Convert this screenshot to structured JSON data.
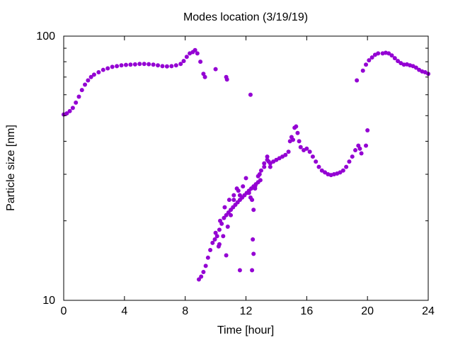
{
  "chart_data": {
    "type": "scatter",
    "title": "Modes location (3/19/19)",
    "xlabel": "Time [hour]",
    "ylabel": "Particle size [nm]",
    "xlim": [
      0,
      24
    ],
    "ylim": [
      10,
      100
    ],
    "yscale": "log",
    "grid": false,
    "legend": "none",
    "point_color": "#9400d3",
    "x_ticks": [
      {
        "value": 0,
        "label": "0"
      },
      {
        "value": 4,
        "label": "4"
      },
      {
        "value": 8,
        "label": "8"
      },
      {
        "value": 12,
        "label": "12"
      },
      {
        "value": 16,
        "label": "16"
      },
      {
        "value": 20,
        "label": "20"
      },
      {
        "value": 24,
        "label": "24"
      }
    ],
    "y_ticks": [
      {
        "value": 10,
        "label": "10"
      },
      {
        "value": 100,
        "label": "100"
      }
    ],
    "series": [
      {
        "points": [
          [
            0.0,
            50.5
          ],
          [
            0.2,
            51.0
          ],
          [
            0.4,
            52.0
          ],
          [
            0.6,
            53.5
          ],
          [
            0.8,
            56.0
          ],
          [
            1.0,
            59.0
          ],
          [
            1.2,
            62.5
          ],
          [
            1.4,
            65.5
          ],
          [
            1.6,
            68.0
          ],
          [
            1.8,
            70.0
          ],
          [
            2.0,
            71.5
          ],
          [
            2.3,
            73.0
          ],
          [
            2.6,
            74.5
          ],
          [
            2.9,
            75.5
          ],
          [
            3.2,
            76.5
          ],
          [
            3.5,
            77.0
          ],
          [
            3.8,
            77.5
          ],
          [
            4.1,
            77.8
          ],
          [
            4.4,
            78.0
          ],
          [
            4.7,
            78.2
          ],
          [
            5.0,
            78.5
          ],
          [
            5.3,
            78.5
          ],
          [
            5.6,
            78.3
          ],
          [
            5.9,
            78.0
          ],
          [
            6.2,
            77.5
          ],
          [
            6.5,
            77.0
          ],
          [
            6.8,
            76.8
          ],
          [
            7.1,
            77.0
          ],
          [
            7.4,
            77.5
          ],
          [
            7.7,
            78.5
          ],
          [
            7.9,
            80.5
          ],
          [
            8.1,
            83.5
          ],
          [
            8.3,
            86.0
          ],
          [
            8.5,
            87.0
          ],
          [
            8.65,
            88.5
          ],
          [
            8.8,
            86.0
          ],
          [
            9.0,
            80.0
          ],
          [
            9.2,
            72.0
          ],
          [
            9.3,
            70.0
          ],
          [
            10.0,
            75.0
          ],
          [
            10.7,
            70.0
          ],
          [
            10.75,
            68.5
          ],
          [
            12.3,
            60.0
          ],
          [
            21.0,
            86.0
          ],
          [
            21.2,
            86.5
          ],
          [
            21.4,
            86.0
          ],
          [
            21.6,
            84.5
          ],
          [
            21.8,
            82.5
          ],
          [
            22.0,
            80.5
          ],
          [
            22.2,
            79.0
          ],
          [
            22.4,
            78.0
          ],
          [
            22.6,
            78.2
          ],
          [
            22.8,
            77.5
          ],
          [
            23.0,
            77.0
          ],
          [
            23.2,
            76.0
          ],
          [
            23.4,
            74.5
          ],
          [
            23.6,
            73.5
          ],
          [
            23.8,
            73.0
          ],
          [
            24.0,
            72.0
          ],
          [
            19.3,
            68.0
          ],
          [
            19.7,
            74.0
          ],
          [
            19.9,
            78.0
          ],
          [
            20.1,
            81.0
          ],
          [
            20.3,
            83.0
          ],
          [
            20.5,
            85.0
          ],
          [
            20.7,
            86.0
          ],
          [
            8.9,
            12.0
          ],
          [
            9.05,
            12.3
          ],
          [
            9.2,
            12.8
          ],
          [
            9.35,
            13.5
          ],
          [
            9.5,
            14.5
          ],
          [
            9.65,
            15.5
          ],
          [
            9.8,
            16.5
          ],
          [
            9.95,
            17.0
          ],
          [
            10.1,
            17.5
          ],
          [
            10.25,
            18.5
          ],
          [
            10.4,
            19.5
          ],
          [
            10.55,
            20.5
          ],
          [
            10.7,
            21.0
          ],
          [
            10.85,
            21.5
          ],
          [
            11.0,
            22.0
          ],
          [
            11.15,
            22.5
          ],
          [
            11.3,
            23.0
          ],
          [
            11.45,
            23.5
          ],
          [
            11.6,
            24.0
          ],
          [
            11.75,
            24.5
          ],
          [
            11.9,
            25.0
          ],
          [
            12.05,
            25.5
          ],
          [
            12.2,
            26.0
          ],
          [
            12.35,
            26.5
          ],
          [
            12.5,
            27.0
          ],
          [
            12.65,
            27.5
          ],
          [
            12.8,
            28.0
          ],
          [
            12.95,
            28.5
          ],
          [
            10.2,
            16.0
          ],
          [
            10.5,
            17.5
          ],
          [
            10.8,
            19.0
          ],
          [
            11.0,
            21.0
          ],
          [
            11.2,
            24.0
          ],
          [
            11.4,
            26.5
          ],
          [
            11.6,
            25.0
          ],
          [
            11.8,
            27.0
          ],
          [
            12.0,
            29.0
          ],
          [
            12.2,
            25.5
          ],
          [
            12.4,
            24.0
          ],
          [
            12.5,
            22.0
          ],
          [
            12.6,
            27.0
          ],
          [
            12.8,
            29.5
          ],
          [
            13.0,
            31.0
          ],
          [
            13.2,
            33.0
          ],
          [
            13.4,
            35.0
          ],
          [
            13.5,
            33.5
          ],
          [
            13.6,
            32.0
          ],
          [
            10.0,
            18.0
          ],
          [
            10.3,
            20.0
          ],
          [
            10.6,
            22.5
          ],
          [
            10.9,
            24.0
          ],
          [
            11.2,
            25.0
          ],
          [
            11.5,
            26.0
          ],
          [
            12.3,
            24.5
          ],
          [
            12.6,
            26.5
          ],
          [
            12.9,
            30.0
          ],
          [
            13.2,
            32.0
          ],
          [
            13.4,
            34.0
          ],
          [
            13.6,
            33.0
          ],
          [
            11.6,
            13.0
          ],
          [
            12.4,
            13.0
          ],
          [
            12.45,
            17.0
          ],
          [
            12.5,
            15.0
          ],
          [
            10.7,
            14.8
          ],
          [
            10.25,
            16.3
          ],
          [
            13.8,
            33.5
          ],
          [
            14.0,
            34.0
          ],
          [
            14.2,
            34.5
          ],
          [
            14.4,
            35.0
          ],
          [
            14.6,
            35.5
          ],
          [
            14.8,
            36.5
          ],
          [
            14.9,
            40.0
          ],
          [
            15.0,
            41.5
          ],
          [
            15.1,
            40.5
          ],
          [
            15.2,
            45.0
          ],
          [
            15.3,
            45.5
          ],
          [
            15.4,
            43.0
          ],
          [
            15.5,
            40.0
          ],
          [
            15.6,
            38.0
          ],
          [
            15.8,
            37.0
          ],
          [
            16.0,
            37.5
          ],
          [
            16.2,
            36.5
          ],
          [
            16.4,
            35.0
          ],
          [
            16.6,
            33.5
          ],
          [
            16.8,
            32.0
          ],
          [
            17.0,
            31.0
          ],
          [
            17.2,
            30.5
          ],
          [
            17.4,
            30.0
          ],
          [
            17.6,
            29.8
          ],
          [
            17.8,
            30.0
          ],
          [
            18.0,
            30.2
          ],
          [
            18.2,
            30.5
          ],
          [
            18.4,
            31.0
          ],
          [
            18.6,
            32.0
          ],
          [
            18.8,
            33.5
          ],
          [
            19.0,
            35.0
          ],
          [
            19.2,
            37.0
          ],
          [
            19.4,
            38.5
          ],
          [
            19.5,
            37.5
          ],
          [
            19.6,
            36.0
          ],
          [
            19.9,
            38.5
          ],
          [
            20.0,
            44.0
          ]
        ]
      }
    ]
  }
}
